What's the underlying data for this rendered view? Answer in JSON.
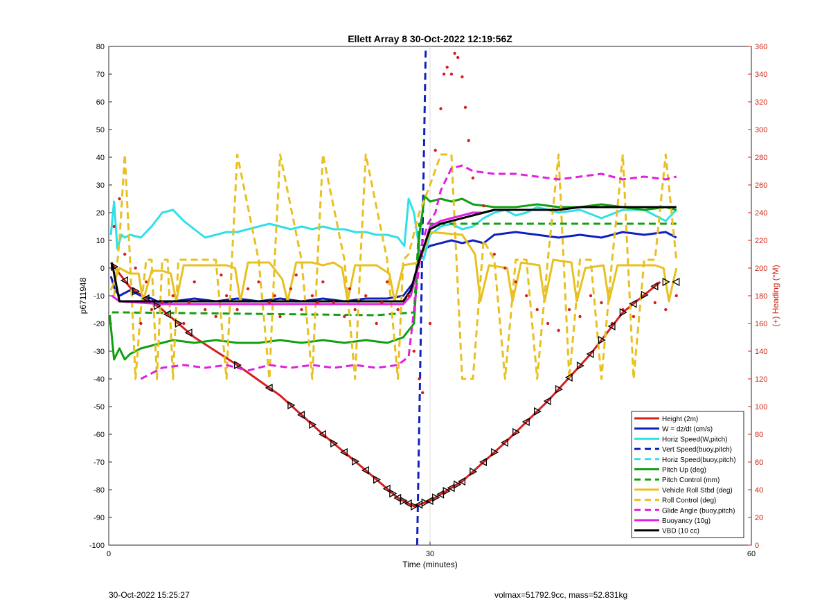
{
  "chart_data": {
    "type": "line",
    "title": "Ellett Array 8 30-Oct-2022 12:19:56Z",
    "xlabel": "Time (minutes)",
    "ylabel": "p6711948",
    "y2label": "(+) Heading (°M)",
    "xlim": [
      0,
      60
    ],
    "ylim": [
      -100,
      80
    ],
    "y2lim": [
      0,
      360
    ],
    "xticks": [
      "0",
      "30",
      "60"
    ],
    "yticks": [
      "80",
      "70",
      "60",
      "50",
      "40",
      "30",
      "20",
      "10",
      "0",
      "-10",
      "-20",
      "-30",
      "-40",
      "-50",
      "-60",
      "-70",
      "-80",
      "-90",
      "-100"
    ],
    "y2ticks": [
      "360",
      "340",
      "320",
      "300",
      "280",
      "260",
      "240",
      "220",
      "200",
      "180",
      "160",
      "140",
      "120",
      "100",
      "80",
      "60",
      "40",
      "20",
      "0"
    ],
    "legend_position": "bottom-right",
    "series": [
      {
        "name": "Height (2m)",
        "color": "#d42020",
        "dash": "solid",
        "x": [
          0.2,
          2,
          5,
          8,
          12,
          16,
          20,
          24,
          27,
          28.5,
          30,
          33,
          37,
          41,
          45,
          48,
          51.5
        ],
        "y": [
          2,
          -7,
          -15,
          -25,
          -35,
          -46,
          -60,
          -73,
          -83,
          -86,
          -84,
          -77,
          -63,
          -48,
          -31,
          -16,
          -5
        ]
      },
      {
        "name": "W = dz/dt (cm/s)",
        "color": "#1020c0",
        "dash": "solid",
        "x": [
          0.2,
          0.6,
          1,
          2,
          3,
          4,
          5,
          6,
          8,
          10,
          12,
          14,
          16,
          18,
          20,
          22,
          24,
          26,
          27.5,
          28.5,
          29.2,
          30,
          31,
          32,
          33,
          34,
          35,
          36,
          38,
          40,
          42,
          44,
          46,
          48,
          50,
          52,
          53
        ],
        "y": [
          -3,
          -8,
          -10,
          -8,
          -10,
          -11,
          -13,
          -12,
          -11,
          -12,
          -11,
          -12,
          -11,
          -12,
          -11,
          -12,
          -11,
          -11,
          -10,
          -5,
          6,
          8,
          9,
          10,
          9,
          10,
          9,
          12,
          13,
          12,
          11,
          12,
          11,
          13,
          12,
          13,
          11
        ]
      },
      {
        "name": "Horiz Speed(W,pitch)",
        "color": "#30e0e8",
        "dash": "solid",
        "x": [
          0.2,
          0.5,
          0.8,
          1.2,
          1.5,
          2,
          3,
          4,
          5,
          6,
          7,
          8,
          9,
          10,
          11,
          12,
          13,
          14,
          15,
          16,
          17,
          18,
          19,
          20,
          21,
          22,
          23,
          24,
          25,
          26,
          27,
          27.6,
          28,
          28.5,
          29,
          29.4,
          30,
          31,
          32,
          33,
          34,
          35,
          36,
          37,
          38,
          39,
          40,
          42,
          44,
          46,
          48,
          50,
          52,
          53
        ],
        "y": [
          12,
          24,
          7,
          12,
          11,
          12,
          11,
          15,
          20,
          21,
          17,
          14,
          11,
          12,
          13,
          13,
          14,
          15,
          16,
          15,
          14,
          15,
          14,
          15,
          14,
          14,
          13,
          13,
          12,
          12,
          11,
          8,
          25,
          20,
          7,
          3,
          12,
          15,
          16,
          14,
          15,
          18,
          20,
          21,
          19,
          20,
          22,
          20,
          21,
          18,
          21,
          21,
          17,
          21
        ]
      },
      {
        "name": "Vert Speed(buoy,pitch)",
        "color": "#1020c0",
        "dash": "dash",
        "x": [
          28.8,
          29.6
        ],
        "y": [
          -100,
          80
        ]
      },
      {
        "name": "Horiz Speed(buoy,pitch)",
        "color": "#30e0e8",
        "dash": "dash",
        "x": [],
        "y": []
      },
      {
        "name": "Pitch Up (deg)",
        "color": "#10a010",
        "dash": "solid",
        "x": [
          0.1,
          0.5,
          1,
          1.5,
          2,
          3,
          4,
          5,
          6,
          8,
          10,
          12,
          14,
          16,
          18,
          20,
          22,
          24,
          26,
          27.5,
          28.5,
          29,
          29.5,
          30,
          31,
          32,
          33,
          34,
          36,
          38,
          40,
          42,
          44,
          46,
          48,
          50,
          52,
          53
        ],
        "y": [
          -17,
          -33,
          -29,
          -33,
          -31,
          -29,
          -28,
          -27,
          -26,
          -27,
          -26,
          -27,
          -27,
          -26,
          -27,
          -26,
          -27,
          -26,
          -27,
          -25,
          -20,
          12,
          26,
          24,
          25,
          24,
          25,
          23,
          22,
          22,
          23,
          22,
          22,
          23,
          22,
          21,
          22,
          21
        ]
      },
      {
        "name": "Pitch Control (mm)",
        "color": "#10a010",
        "dash": "dash",
        "x": [
          0.3,
          1,
          25,
          28.5,
          29,
          53
        ],
        "y": [
          -16,
          -16,
          -17,
          -16,
          16,
          16
        ]
      },
      {
        "name": "Vehicle Roll Stbd (deg)",
        "color": "#e8c020",
        "dash": "solid",
        "x": [
          0.2,
          1,
          2,
          2.8,
          3.2,
          4,
          5,
          5.8,
          6.3,
          7,
          9,
          10,
          11,
          11.8,
          12.3,
          13,
          15,
          16.2,
          16.7,
          17.5,
          19,
          20,
          21,
          21.8,
          22.3,
          23,
          25,
          26.2,
          26.7,
          27.5,
          29,
          30,
          33,
          34.2,
          34.7,
          35.5,
          37.2,
          37.7,
          38.5,
          40.2,
          40.7,
          41.5,
          43.2,
          43.7,
          44.5,
          46.2,
          46.7,
          47.5,
          49,
          50,
          51,
          51.8,
          52.3,
          53
        ],
        "y": [
          -8,
          0,
          -2,
          -2,
          -12,
          -1,
          -1,
          -2,
          -12,
          1,
          1,
          1,
          1,
          0,
          -12,
          2,
          2,
          -4,
          -12,
          2,
          2,
          1,
          2,
          0,
          -12,
          1,
          1,
          -2,
          -12,
          1,
          2,
          13,
          12,
          5,
          -12,
          1,
          0,
          -12,
          2,
          1,
          -12,
          3,
          2,
          -12,
          0,
          1,
          -12,
          1,
          1,
          1,
          1,
          0,
          -12,
          0
        ]
      },
      {
        "name": "Roll Control (deg)",
        "color": "#e8c020",
        "dash": "dash",
        "x": [
          0.5,
          1,
          1.5,
          2,
          2.5,
          3,
          3.5,
          4,
          4.5,
          5,
          5.5,
          6,
          6.5,
          7,
          10,
          11,
          11.5,
          12,
          14,
          15,
          15.5,
          16,
          18,
          19,
          19.5,
          20,
          22,
          23,
          23.5,
          24,
          26,
          27,
          27.5,
          28,
          29,
          30,
          31,
          32,
          33,
          34,
          35,
          36,
          37,
          38,
          39,
          40,
          41,
          42,
          43,
          44,
          45,
          46,
          47,
          48,
          49,
          50,
          51,
          52,
          53
        ],
        "y": [
          -10,
          10,
          41,
          2,
          -40,
          -15,
          3,
          3,
          -40,
          3,
          3,
          -40,
          3,
          3,
          3,
          -40,
          3,
          41,
          3,
          -40,
          3,
          41,
          3,
          -40,
          3,
          41,
          3,
          -40,
          3,
          41,
          3,
          -40,
          3,
          5,
          20,
          30,
          41,
          41,
          -40,
          -40,
          10,
          3,
          -40,
          3,
          3,
          -40,
          3,
          41,
          -40,
          3,
          3,
          -40,
          3,
          41,
          -40,
          3,
          3,
          41,
          3
        ]
      },
      {
        "name": "Glide Angle (buoy,pitch)",
        "color": "#e020e0",
        "dash": "dash",
        "x": [
          3,
          5,
          7,
          9,
          11,
          13,
          15,
          17,
          19,
          21,
          23,
          25,
          27,
          28,
          28.6,
          29.2,
          29.8,
          30.5,
          31,
          32,
          33,
          34,
          36,
          38,
          40,
          42,
          44,
          46,
          48,
          50,
          52,
          53
        ],
        "y": [
          -40,
          -36,
          -35,
          -36,
          -35,
          -37,
          -35,
          -36,
          -35,
          -36,
          -35,
          -36,
          -35,
          -32,
          -12,
          8,
          16,
          20,
          28,
          36,
          37,
          35,
          34,
          34,
          33,
          32,
          33,
          34,
          32,
          33,
          32,
          33
        ]
      },
      {
        "name": "Buoyancy (10g)",
        "color": "#e020e0",
        "dash": "solid",
        "x": [
          0.3,
          1,
          5,
          10,
          15,
          20,
          25,
          27.5,
          28.2,
          29,
          30,
          31,
          32,
          33,
          34,
          35,
          36,
          38,
          40,
          42,
          44,
          46,
          48,
          50,
          52,
          53
        ],
        "y": [
          -10,
          -12,
          -13,
          -13,
          -13,
          -13,
          -13,
          -13,
          -10,
          2,
          15,
          17,
          18,
          19,
          20,
          20,
          21,
          21,
          21,
          21,
          22,
          22,
          22,
          22,
          22,
          22
        ]
      },
      {
        "name": "VBD (10 cc)",
        "color": "#000000",
        "dash": "solid",
        "x": [
          0.3,
          1,
          5,
          10,
          15,
          20,
          25,
          27.5,
          28.2,
          29,
          30,
          31,
          32,
          33,
          34,
          35,
          36,
          38,
          40,
          42,
          44,
          46,
          48,
          50,
          52,
          53
        ],
        "y": [
          2,
          -12,
          -12,
          -12,
          -12,
          -12,
          -12,
          -12,
          -8,
          3,
          14,
          16,
          17,
          18,
          19,
          20,
          21,
          21,
          21,
          21,
          22,
          22,
          22,
          22,
          22,
          22
        ]
      }
    ],
    "heading_points": {
      "color": "#d42020",
      "x": [
        0.5,
        1,
        1.5,
        2.5,
        3,
        3.5,
        4,
        5,
        6,
        7,
        7.5,
        8,
        9,
        10,
        10.5,
        11,
        12,
        13,
        14,
        15,
        15.5,
        16,
        17,
        17.5,
        18,
        19,
        19.5,
        20,
        21,
        22,
        22.5,
        23,
        24,
        25,
        25.5,
        26,
        27,
        28,
        28.5,
        29,
        29.3,
        30,
        30.5,
        31,
        31.3,
        31.6,
        32,
        32.3,
        32.6,
        33,
        33.3,
        33.6,
        34,
        35,
        36,
        37,
        38,
        39,
        40,
        41,
        42,
        43,
        44,
        45,
        46,
        47,
        48,
        49,
        50,
        51,
        52,
        53
      ],
      "y": [
        230,
        250,
        210,
        200,
        160,
        190,
        170,
        175,
        180,
        160,
        175,
        190,
        170,
        165,
        195,
        180,
        170,
        185,
        190,
        175,
        180,
        165,
        185,
        195,
        170,
        180,
        175,
        190,
        175,
        165,
        185,
        170,
        180,
        160,
        175,
        190,
        170,
        180,
        140,
        120,
        110,
        160,
        285,
        315,
        340,
        345,
        340,
        355,
        352,
        338,
        316,
        292,
        265,
        245,
        210,
        200,
        190,
        180,
        170,
        160,
        155,
        170,
        165,
        180,
        175,
        160,
        170,
        165,
        180,
        175,
        170,
        180
      ]
    },
    "height_markers": {
      "x": [
        0.5,
        1.5,
        2.5,
        3.5,
        4.5,
        5.5,
        6.5,
        7.5,
        12,
        15,
        17,
        18,
        19,
        20,
        21,
        22,
        23,
        24,
        25,
        26,
        26.5,
        27,
        27.5,
        28,
        28.5,
        29,
        29.5,
        30,
        30.5,
        31,
        31.5,
        32,
        32.5,
        33,
        34,
        35,
        36,
        37,
        38,
        39,
        40,
        41,
        42,
        43,
        44,
        45,
        46,
        47,
        48,
        49,
        50,
        51,
        52,
        53
      ]
    }
  },
  "footer": {
    "left": "30-Oct-2022 15:25:27",
    "right": "volmax=51792.9cc, mass=52.831kg"
  }
}
